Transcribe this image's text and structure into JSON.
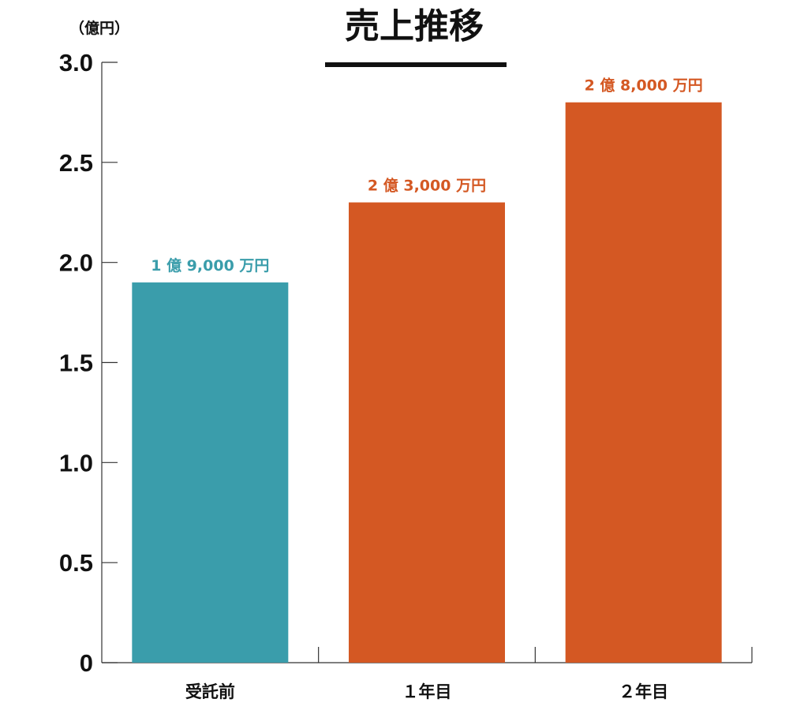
{
  "chart_data": {
    "type": "bar",
    "title": "売上推移",
    "ylabel": "（億円）",
    "categories": [
      "受託前",
      "１年目",
      "２年目"
    ],
    "values": [
      1.9,
      2.3,
      2.8
    ],
    "value_labels": [
      "1 億 9,000 万円",
      "2 億 3,000 万円",
      "2 億 8,000 万円"
    ],
    "bar_colors": [
      "#3a9dab",
      "#d45823",
      "#d45823"
    ],
    "ylim": [
      0,
      3.0
    ],
    "yticks": [
      0,
      0.5,
      1.0,
      1.5,
      2.0,
      2.5,
      3.0
    ],
    "ytick_labels": [
      "0",
      "0.5",
      "1.0",
      "1.5",
      "2.0",
      "2.5",
      "3.0"
    ],
    "grid": false,
    "legend": "none"
  }
}
